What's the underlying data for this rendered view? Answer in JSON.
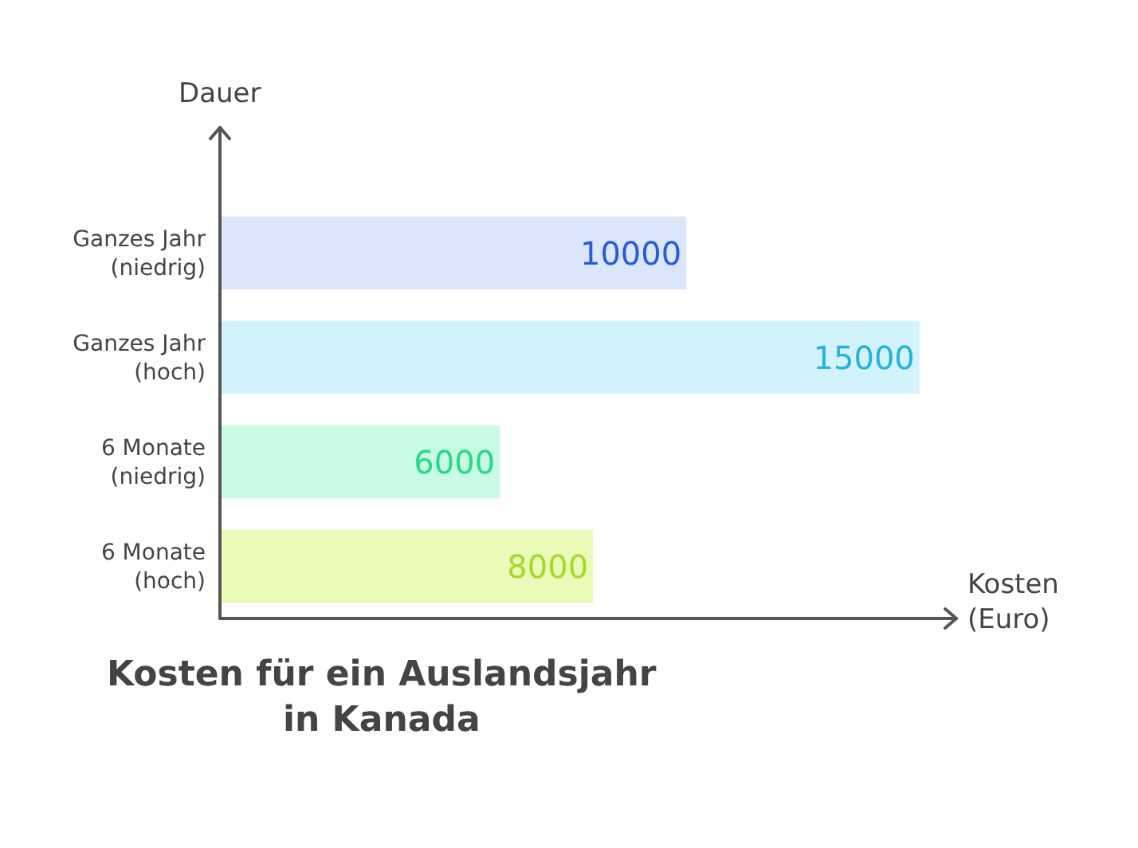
{
  "chart_data": {
    "type": "bar",
    "orientation": "horizontal",
    "title": "Kosten für ein Auslandsjahr in Kanada",
    "xlabel": "Kosten (Euro)",
    "ylabel": "Dauer",
    "categories": [
      "Ganzes Jahr (niedrig)",
      "Ganzes Jahr (hoch)",
      "6 Monate (niedrig)",
      "6 Monate (hoch)"
    ],
    "values": [
      10000,
      15000,
      6000,
      8000
    ],
    "colors": [
      "#dbe5fc",
      "#d3f3fc",
      "#c9fbe4",
      "#e8fcb8"
    ],
    "data_labels": true,
    "tick_labels": "y",
    "grid": false
  }
}
